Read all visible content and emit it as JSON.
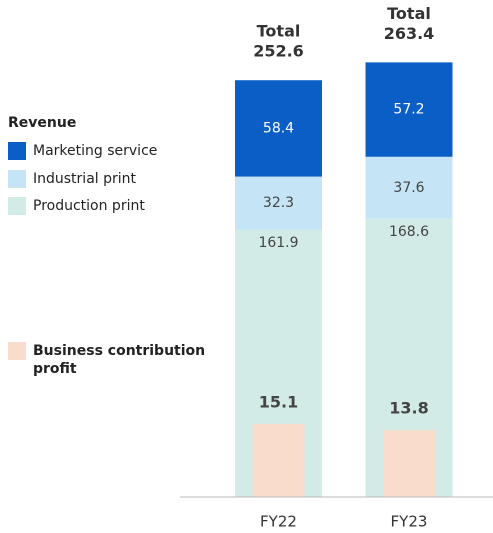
{
  "chart_data": {
    "type": "stacked_bar",
    "categories": [
      "FY22",
      "FY23"
    ],
    "legend_title": "Revenue",
    "series": [
      {
        "name": "Production print",
        "color": "#d3ebe6",
        "values": [
          161.9,
          168.6
        ]
      },
      {
        "name": "Industrial print",
        "color": "#c5e4f5",
        "values": [
          32.3,
          37.6
        ]
      },
      {
        "name": "Marketing service",
        "color": "#0b5ec6",
        "values": [
          58.4,
          57.2
        ]
      }
    ],
    "total_label": "Total",
    "totals": [
      252.6,
      263.4
    ],
    "profit": {
      "name": "Business contribution profit",
      "color": "#fadccc",
      "values": [
        15.1,
        13.8
      ],
      "axis": "y2"
    },
    "ylim": [
      0,
      270
    ],
    "y2lim": [
      0,
      92
    ]
  }
}
